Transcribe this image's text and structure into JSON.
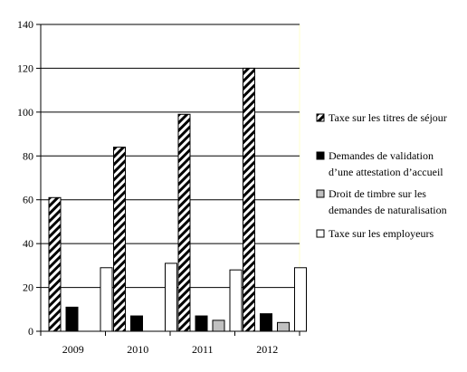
{
  "chart_data": {
    "type": "bar",
    "title": "",
    "xlabel": "",
    "ylabel": "",
    "categories": [
      "2009",
      "2010",
      "2011",
      "2012"
    ],
    "ylim": [
      0,
      140
    ],
    "yticks": [
      0,
      20,
      40,
      60,
      80,
      100,
      120,
      140
    ],
    "grid": true,
    "legend_position": "right",
    "series": [
      {
        "name_lines": [
          "Taxe sur les titres de séjour"
        ],
        "values": [
          61,
          84,
          99,
          120
        ],
        "fill": "hatched",
        "color": "#000000"
      },
      {
        "name_lines": [
          "Demandes de validation",
          "d’une attestation d’accueil"
        ],
        "values": [
          11,
          7,
          7,
          8
        ],
        "fill": "solid",
        "color": "#000000"
      },
      {
        "name_lines": [
          "Droit de timbre sur les",
          "demandes de naturalisation"
        ],
        "values": [
          0,
          0,
          5,
          4
        ],
        "fill": "solid",
        "color": "#c0c0c0"
      },
      {
        "name_lines": [
          "Taxe sur les employeurs"
        ],
        "values": [
          29,
          31,
          28,
          29
        ],
        "fill": "solid",
        "color": "#ffffff"
      }
    ]
  }
}
